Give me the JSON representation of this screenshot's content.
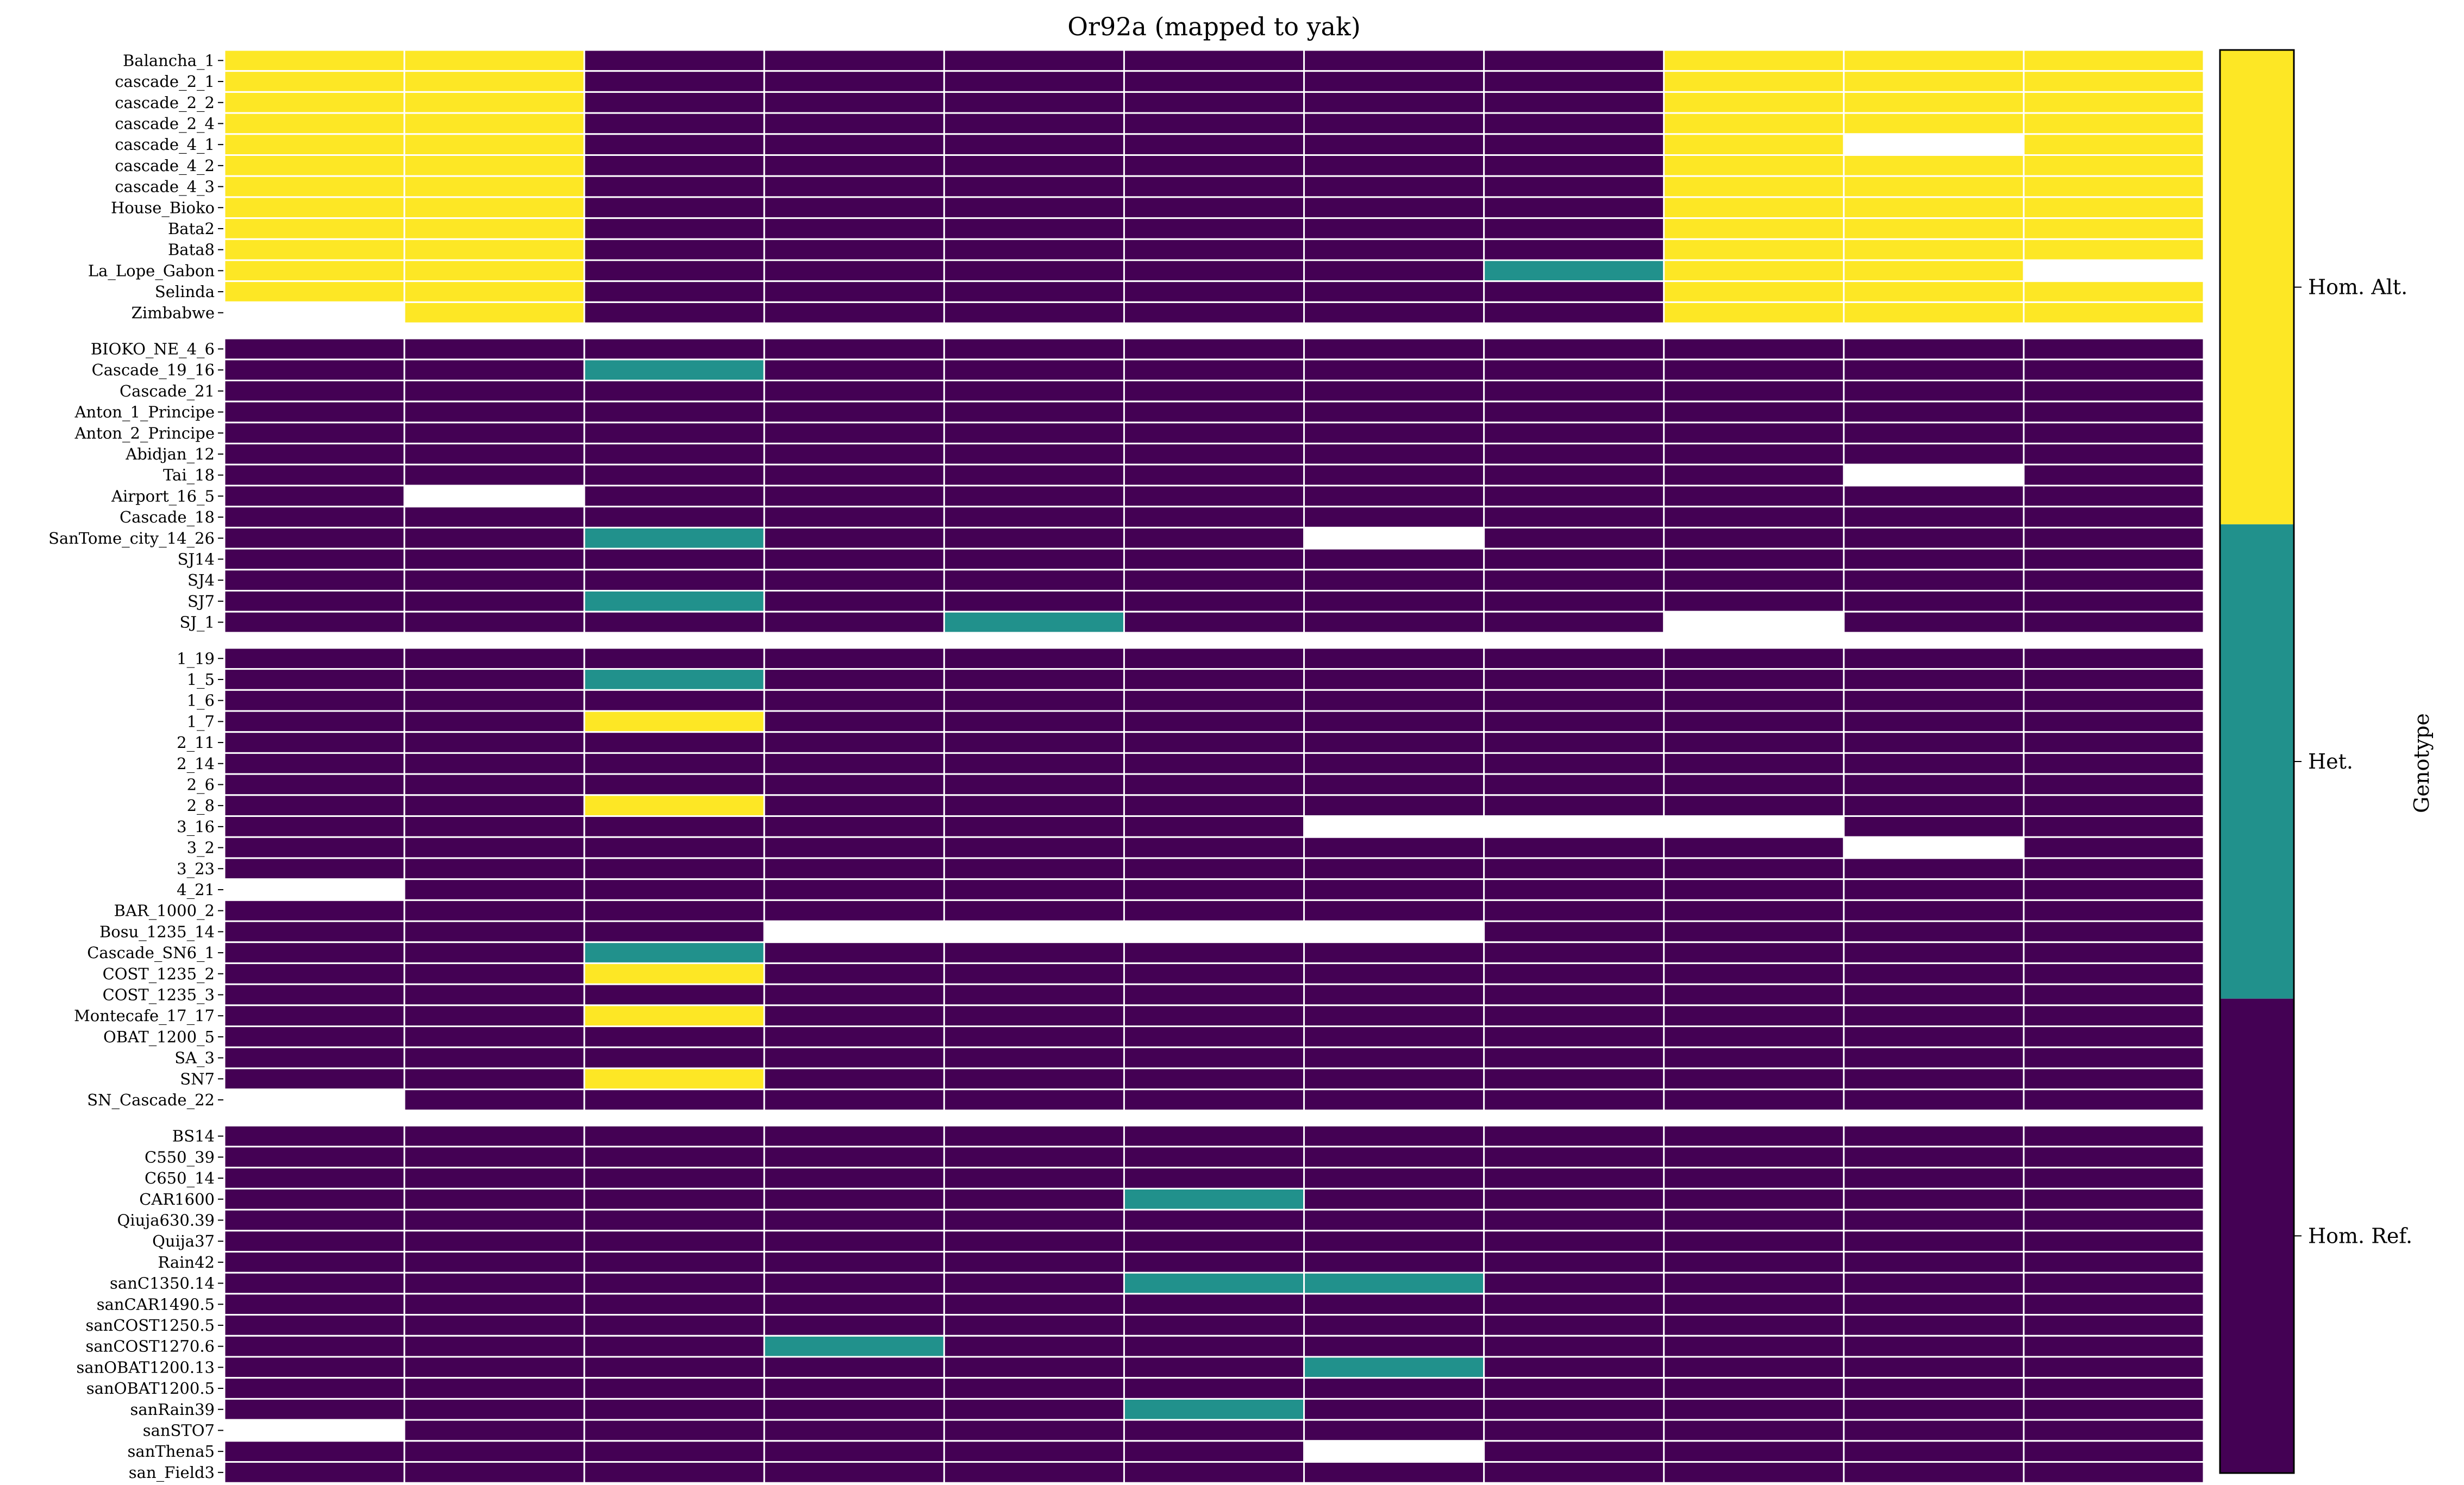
{
  "chart_data": {
    "type": "heatmap",
    "title": "Or92a (mapped to yak)",
    "colorbar": {
      "label": "Genotype",
      "levels": [
        {
          "code": 0,
          "label": "Hom. Ref.",
          "color": "#440154"
        },
        {
          "code": 1,
          "label": "Het.",
          "color": "#21918c"
        },
        {
          "code": 2,
          "label": "Hom. Alt.",
          "color": "#fde725"
        }
      ],
      "missing_color": "#ffffff"
    },
    "n_columns": 11,
    "groups": [
      {
        "rows": [
          {
            "name": "Balancha_1",
            "values": [
              2,
              2,
              0,
              0,
              0,
              0,
              0,
              0,
              2,
              2,
              2
            ]
          },
          {
            "name": "cascade_2_1",
            "values": [
              2,
              2,
              0,
              0,
              0,
              0,
              0,
              0,
              2,
              2,
              2
            ]
          },
          {
            "name": "cascade_2_2",
            "values": [
              2,
              2,
              0,
              0,
              0,
              0,
              0,
              0,
              2,
              2,
              2
            ]
          },
          {
            "name": "cascade_2_4",
            "values": [
              2,
              2,
              0,
              0,
              0,
              0,
              0,
              0,
              2,
              2,
              2
            ]
          },
          {
            "name": "cascade_4_1",
            "values": [
              2,
              2,
              0,
              0,
              0,
              0,
              0,
              0,
              2,
              null,
              2
            ]
          },
          {
            "name": "cascade_4_2",
            "values": [
              2,
              2,
              0,
              0,
              0,
              0,
              0,
              0,
              2,
              2,
              2
            ]
          },
          {
            "name": "cascade_4_3",
            "values": [
              2,
              2,
              0,
              0,
              0,
              0,
              0,
              0,
              2,
              2,
              2
            ]
          },
          {
            "name": "House_Bioko",
            "values": [
              2,
              2,
              0,
              0,
              0,
              0,
              0,
              0,
              2,
              2,
              2
            ]
          },
          {
            "name": "Bata2",
            "values": [
              2,
              2,
              0,
              0,
              0,
              0,
              0,
              0,
              2,
              2,
              2
            ]
          },
          {
            "name": "Bata8",
            "values": [
              2,
              2,
              0,
              0,
              0,
              0,
              0,
              0,
              2,
              2,
              2
            ]
          },
          {
            "name": "La_Lope_Gabon",
            "values": [
              2,
              2,
              0,
              0,
              0,
              0,
              0,
              1,
              2,
              2,
              null
            ]
          },
          {
            "name": "Selinda",
            "values": [
              2,
              2,
              0,
              0,
              0,
              0,
              0,
              0,
              2,
              2,
              2
            ]
          },
          {
            "name": "Zimbabwe",
            "values": [
              null,
              2,
              0,
              0,
              0,
              0,
              0,
              0,
              2,
              2,
              2
            ]
          }
        ]
      },
      {
        "rows": [
          {
            "name": "BIOKO_NE_4_6",
            "values": [
              0,
              0,
              0,
              0,
              0,
              0,
              0,
              0,
              0,
              0,
              0
            ]
          },
          {
            "name": "Cascade_19_16",
            "values": [
              0,
              0,
              1,
              0,
              0,
              0,
              0,
              0,
              0,
              0,
              0
            ]
          },
          {
            "name": "Cascade_21",
            "values": [
              0,
              0,
              0,
              0,
              0,
              0,
              0,
              0,
              0,
              0,
              0
            ]
          },
          {
            "name": "Anton_1_Principe",
            "values": [
              0,
              0,
              0,
              0,
              0,
              0,
              0,
              0,
              0,
              0,
              0
            ]
          },
          {
            "name": "Anton_2_Principe",
            "values": [
              0,
              0,
              0,
              0,
              0,
              0,
              0,
              0,
              0,
              0,
              0
            ]
          },
          {
            "name": "Abidjan_12",
            "values": [
              0,
              0,
              0,
              0,
              0,
              0,
              0,
              0,
              0,
              0,
              0
            ]
          },
          {
            "name": "Tai_18",
            "values": [
              0,
              0,
              0,
              0,
              0,
              0,
              0,
              0,
              0,
              null,
              0
            ]
          },
          {
            "name": "Airport_16_5",
            "values": [
              0,
              null,
              0,
              0,
              0,
              0,
              0,
              0,
              0,
              0,
              0
            ]
          },
          {
            "name": "Cascade_18",
            "values": [
              0,
              0,
              0,
              0,
              0,
              0,
              0,
              0,
              0,
              0,
              0
            ]
          },
          {
            "name": "SanTome_city_14_26",
            "values": [
              0,
              0,
              1,
              0,
              0,
              0,
              null,
              0,
              0,
              0,
              0
            ]
          },
          {
            "name": "SJ14",
            "values": [
              0,
              0,
              0,
              0,
              0,
              0,
              0,
              0,
              0,
              0,
              0
            ]
          },
          {
            "name": "SJ4",
            "values": [
              0,
              0,
              0,
              0,
              0,
              0,
              0,
              0,
              0,
              0,
              0
            ]
          },
          {
            "name": "SJ7",
            "values": [
              0,
              0,
              1,
              0,
              0,
              0,
              0,
              0,
              0,
              0,
              0
            ]
          },
          {
            "name": "SJ_1",
            "values": [
              0,
              0,
              0,
              0,
              1,
              0,
              0,
              0,
              null,
              0,
              0
            ]
          }
        ]
      },
      {
        "rows": [
          {
            "name": "1_19",
            "values": [
              0,
              0,
              0,
              0,
              0,
              0,
              0,
              0,
              0,
              0,
              0
            ]
          },
          {
            "name": "1_5",
            "values": [
              0,
              0,
              1,
              0,
              0,
              0,
              0,
              0,
              0,
              0,
              0
            ]
          },
          {
            "name": "1_6",
            "values": [
              0,
              0,
              0,
              0,
              0,
              0,
              0,
              0,
              0,
              0,
              0
            ]
          },
          {
            "name": "1_7",
            "values": [
              0,
              0,
              2,
              0,
              0,
              0,
              0,
              0,
              0,
              0,
              0
            ]
          },
          {
            "name": "2_11",
            "values": [
              0,
              0,
              0,
              0,
              0,
              0,
              0,
              0,
              0,
              0,
              0
            ]
          },
          {
            "name": "2_14",
            "values": [
              0,
              0,
              0,
              0,
              0,
              0,
              0,
              0,
              0,
              0,
              0
            ]
          },
          {
            "name": "2_6",
            "values": [
              0,
              0,
              0,
              0,
              0,
              0,
              0,
              0,
              0,
              0,
              0
            ]
          },
          {
            "name": "2_8",
            "values": [
              0,
              0,
              2,
              0,
              0,
              0,
              0,
              0,
              0,
              0,
              0
            ]
          },
          {
            "name": "3_16",
            "values": [
              0,
              0,
              0,
              0,
              0,
              0,
              null,
              null,
              null,
              0,
              0
            ]
          },
          {
            "name": "3_2",
            "values": [
              0,
              0,
              0,
              0,
              0,
              0,
              0,
              0,
              0,
              null,
              0
            ]
          },
          {
            "name": "3_23",
            "values": [
              0,
              0,
              0,
              0,
              0,
              0,
              0,
              0,
              0,
              0,
              0
            ]
          },
          {
            "name": "4_21",
            "values": [
              null,
              0,
              0,
              0,
              0,
              0,
              0,
              0,
              0,
              0,
              0
            ]
          },
          {
            "name": "BAR_1000_2",
            "values": [
              0,
              0,
              0,
              0,
              0,
              0,
              0,
              0,
              0,
              0,
              0
            ]
          },
          {
            "name": "Bosu_1235_14",
            "values": [
              0,
              0,
              0,
              null,
              null,
              null,
              null,
              0,
              0,
              0,
              0
            ]
          },
          {
            "name": "Cascade_SN6_1",
            "values": [
              0,
              0,
              1,
              0,
              0,
              0,
              0,
              0,
              0,
              0,
              0
            ]
          },
          {
            "name": "COST_1235_2",
            "values": [
              0,
              0,
              2,
              0,
              0,
              0,
              0,
              0,
              0,
              0,
              0
            ]
          },
          {
            "name": "COST_1235_3",
            "values": [
              0,
              0,
              0,
              0,
              0,
              0,
              0,
              0,
              0,
              0,
              0
            ]
          },
          {
            "name": "Montecafe_17_17",
            "values": [
              0,
              0,
              2,
              0,
              0,
              0,
              0,
              0,
              0,
              0,
              0
            ]
          },
          {
            "name": "OBAT_1200_5",
            "values": [
              0,
              0,
              0,
              0,
              0,
              0,
              0,
              0,
              0,
              0,
              0
            ]
          },
          {
            "name": "SA_3",
            "values": [
              0,
              0,
              0,
              0,
              0,
              0,
              0,
              0,
              0,
              0,
              0
            ]
          },
          {
            "name": "SN7",
            "values": [
              0,
              0,
              2,
              0,
              0,
              0,
              0,
              0,
              0,
              0,
              0
            ]
          },
          {
            "name": "SN_Cascade_22",
            "values": [
              null,
              0,
              0,
              0,
              0,
              0,
              0,
              0,
              0,
              0,
              0
            ]
          }
        ]
      },
      {
        "rows": [
          {
            "name": "BS14",
            "values": [
              0,
              0,
              0,
              0,
              0,
              0,
              0,
              0,
              0,
              0,
              0
            ]
          },
          {
            "name": "C550_39",
            "values": [
              0,
              0,
              0,
              0,
              0,
              0,
              0,
              0,
              0,
              0,
              0
            ]
          },
          {
            "name": "C650_14",
            "values": [
              0,
              0,
              0,
              0,
              0,
              0,
              0,
              0,
              0,
              0,
              0
            ]
          },
          {
            "name": "CAR1600",
            "values": [
              0,
              0,
              0,
              0,
              0,
              1,
              0,
              0,
              0,
              0,
              0
            ]
          },
          {
            "name": "Qiuja630.39",
            "values": [
              0,
              0,
              0,
              0,
              0,
              0,
              0,
              0,
              0,
              0,
              0
            ]
          },
          {
            "name": "Quija37",
            "values": [
              0,
              0,
              0,
              0,
              0,
              0,
              0,
              0,
              0,
              0,
              0
            ]
          },
          {
            "name": "Rain42",
            "values": [
              0,
              0,
              0,
              0,
              0,
              0,
              0,
              0,
              0,
              0,
              0
            ]
          },
          {
            "name": "sanC1350.14",
            "values": [
              0,
              0,
              0,
              0,
              0,
              1,
              1,
              0,
              0,
              0,
              0
            ]
          },
          {
            "name": "sanCAR1490.5",
            "values": [
              0,
              0,
              0,
              0,
              0,
              0,
              0,
              0,
              0,
              0,
              0
            ]
          },
          {
            "name": "sanCOST1250.5",
            "values": [
              0,
              0,
              0,
              0,
              0,
              0,
              0,
              0,
              0,
              0,
              0
            ]
          },
          {
            "name": "sanCOST1270.6",
            "values": [
              0,
              0,
              0,
              1,
              0,
              0,
              0,
              0,
              0,
              0,
              0
            ]
          },
          {
            "name": "sanOBAT1200.13",
            "values": [
              0,
              0,
              0,
              0,
              0,
              0,
              1,
              0,
              0,
              0,
              0
            ]
          },
          {
            "name": "sanOBAT1200.5",
            "values": [
              0,
              0,
              0,
              0,
              0,
              0,
              0,
              0,
              0,
              0,
              0
            ]
          },
          {
            "name": "sanRain39",
            "values": [
              0,
              0,
              0,
              0,
              0,
              1,
              0,
              0,
              0,
              0,
              0
            ]
          },
          {
            "name": "sanSTO7",
            "values": [
              null,
              0,
              0,
              0,
              0,
              0,
              0,
              0,
              0,
              0,
              0
            ]
          },
          {
            "name": "sanThena5",
            "values": [
              0,
              0,
              0,
              0,
              0,
              0,
              null,
              0,
              0,
              0,
              0
            ]
          },
          {
            "name": "san_Field3",
            "values": [
              0,
              0,
              0,
              0,
              0,
              0,
              0,
              0,
              0,
              0,
              0
            ]
          }
        ]
      }
    ]
  }
}
